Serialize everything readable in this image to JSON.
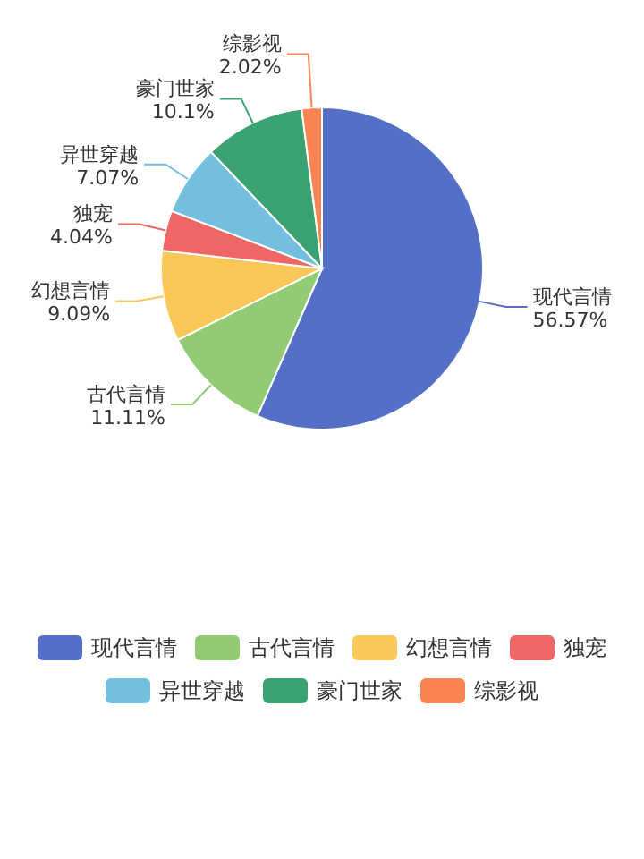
{
  "chart_data": {
    "type": "pie",
    "categories": [
      "现代言情",
      "古代言情",
      "幻想言情",
      "独宠",
      "异世穿越",
      "豪门世家",
      "综影视"
    ],
    "values": [
      56.57,
      11.11,
      9.09,
      4.04,
      7.07,
      10.1,
      2.02
    ],
    "colors": [
      "#5470c6",
      "#91cc75",
      "#fac858",
      "#ee6666",
      "#73c0de",
      "#3ba272",
      "#fc8452"
    ],
    "value_labels": [
      "56.57%",
      "11.11%",
      "9.09%",
      "4.04%",
      "7.07%",
      "10.1%",
      "2.02%"
    ],
    "legend": "bottom"
  }
}
